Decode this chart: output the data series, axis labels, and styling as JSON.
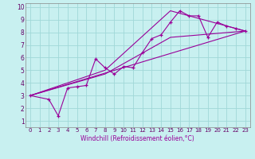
{
  "xlabel": "Windchill (Refroidissement éolien,°C)",
  "bg_color": "#c8f0f0",
  "grid_color": "#a0d8d8",
  "line_color": "#990099",
  "xlim": [
    -0.5,
    23.5
  ],
  "ylim": [
    0.5,
    10.3
  ],
  "xticks": [
    0,
    1,
    2,
    3,
    4,
    5,
    6,
    7,
    8,
    9,
    10,
    11,
    12,
    13,
    14,
    15,
    16,
    17,
    18,
    19,
    20,
    21,
    22,
    23
  ],
  "yticks": [
    1,
    2,
    3,
    4,
    5,
    6,
    7,
    8,
    9,
    10
  ],
  "scatter_x": [
    0,
    2,
    3,
    4,
    5,
    6,
    7,
    8,
    9,
    10,
    11,
    12,
    13,
    14,
    15,
    16,
    17,
    18,
    19,
    20,
    21,
    22,
    23
  ],
  "scatter_y": [
    3.0,
    2.7,
    1.4,
    3.6,
    3.7,
    3.8,
    5.9,
    5.2,
    4.7,
    5.3,
    5.2,
    6.4,
    7.5,
    7.8,
    8.8,
    9.7,
    9.3,
    9.3,
    7.6,
    8.8,
    8.5,
    8.3,
    8.1
  ],
  "line1_x": [
    0,
    23
  ],
  "line1_y": [
    3.0,
    8.1
  ],
  "line2_x": [
    0,
    8,
    15,
    23
  ],
  "line2_y": [
    3.0,
    5.0,
    9.7,
    8.1
  ],
  "line3_x": [
    0,
    8,
    15,
    23
  ],
  "line3_y": [
    3.0,
    4.7,
    7.6,
    8.1
  ],
  "xlabel_fontsize": 5.5,
  "tick_fontsize": 5.0,
  "marker_size": 3.5,
  "linewidth": 0.8
}
